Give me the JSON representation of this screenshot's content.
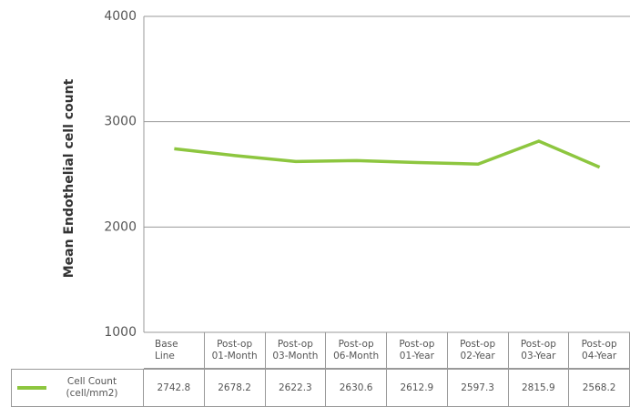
{
  "chart_data": {
    "type": "line",
    "y_label": "Mean Endothelial cell count",
    "categories": [
      "Base Line",
      "Post-op 01-Month",
      "Post-op 03-Month",
      "Post-op 06-Month",
      "Post-op 01-Year",
      "Post-op 02-Year",
      "Post-op 03-Year",
      "Post-op 04-Year"
    ],
    "series": [
      {
        "name": "Cell Count (cell/mm2)",
        "color": "#8dc63f",
        "values": [
          2742.8,
          2678.2,
          2622.3,
          2630.6,
          2612.9,
          2597.3,
          2815.9,
          2568.2
        ]
      }
    ],
    "ylim": [
      1000,
      4000
    ],
    "yticks": [
      1000,
      2000,
      3000,
      4000
    ],
    "grid": true,
    "table": true
  }
}
